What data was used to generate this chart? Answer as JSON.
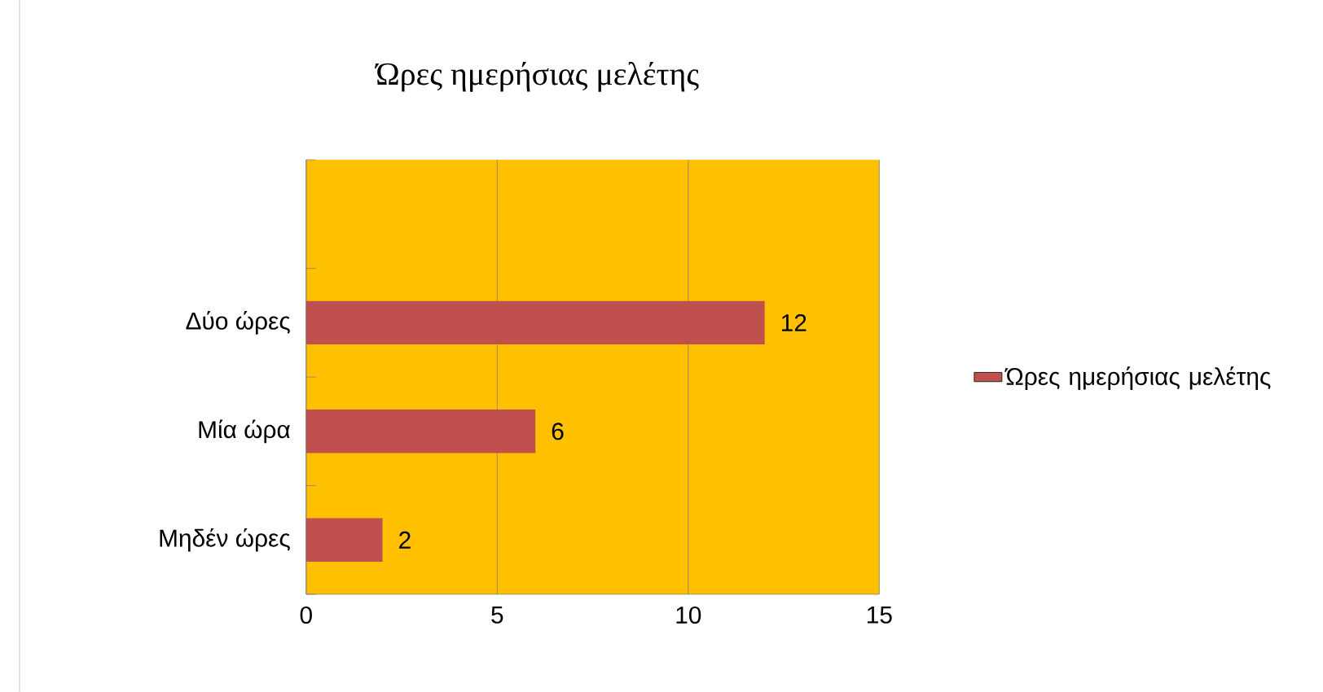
{
  "chart_data": {
    "type": "bar",
    "orientation": "horizontal",
    "title": "Ώρες ημερήσιας μελέτης",
    "categories": [
      null,
      "Δύο ώρες",
      "Μία ώρα",
      "Μηδέν ώρες"
    ],
    "series": [
      {
        "name": "Ώρες ημερήσιας μελέτης",
        "color": "#c0504d",
        "values": [
          null,
          12,
          6,
          2
        ]
      }
    ],
    "xlim": [
      0,
      15
    ],
    "xticks": [
      0,
      5,
      10,
      15
    ],
    "grid": "x",
    "legend": "right",
    "data_labels": true
  }
}
